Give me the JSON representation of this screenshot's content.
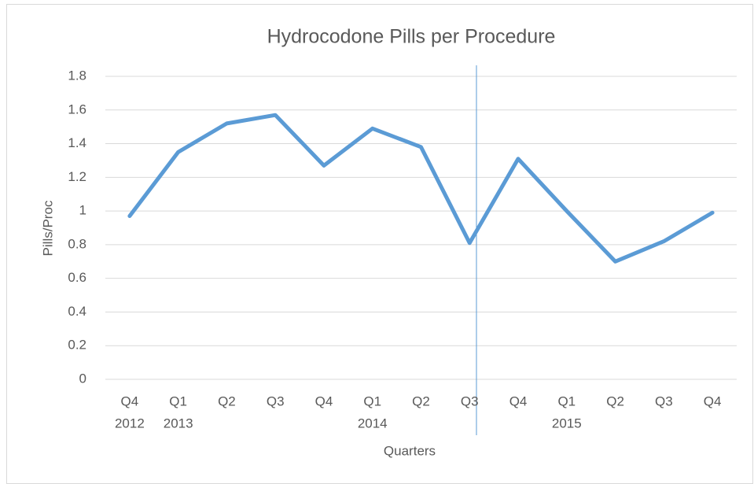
{
  "chart_data": {
    "type": "line",
    "title": "Hydrocodone Pills per Procedure",
    "x_label": "Quarters",
    "y_label": "Pills/Proc",
    "categories": [
      "Q4",
      "Q1",
      "Q2",
      "Q3",
      "Q4",
      "Q1",
      "Q2",
      "Q3",
      "Q4",
      "Q1",
      "Q2",
      "Q3",
      "Q4"
    ],
    "category_years": [
      "2012",
      "2013",
      null,
      null,
      null,
      "2014",
      null,
      null,
      null,
      "2015",
      null,
      null,
      null
    ],
    "series": [
      {
        "name": "Pills/Proc",
        "color": "#5b9bd5",
        "values": [
          0.97,
          1.35,
          1.52,
          1.57,
          1.27,
          1.49,
          1.38,
          0.81,
          1.31,
          1.0,
          0.7,
          0.82,
          0.99
        ]
      }
    ],
    "ylim": [
      0,
      1.8
    ],
    "yticks": [
      0,
      0.2,
      0.4,
      0.6,
      0.8,
      1,
      1.2,
      1.4,
      1.6,
      1.8
    ],
    "grid": true
  }
}
